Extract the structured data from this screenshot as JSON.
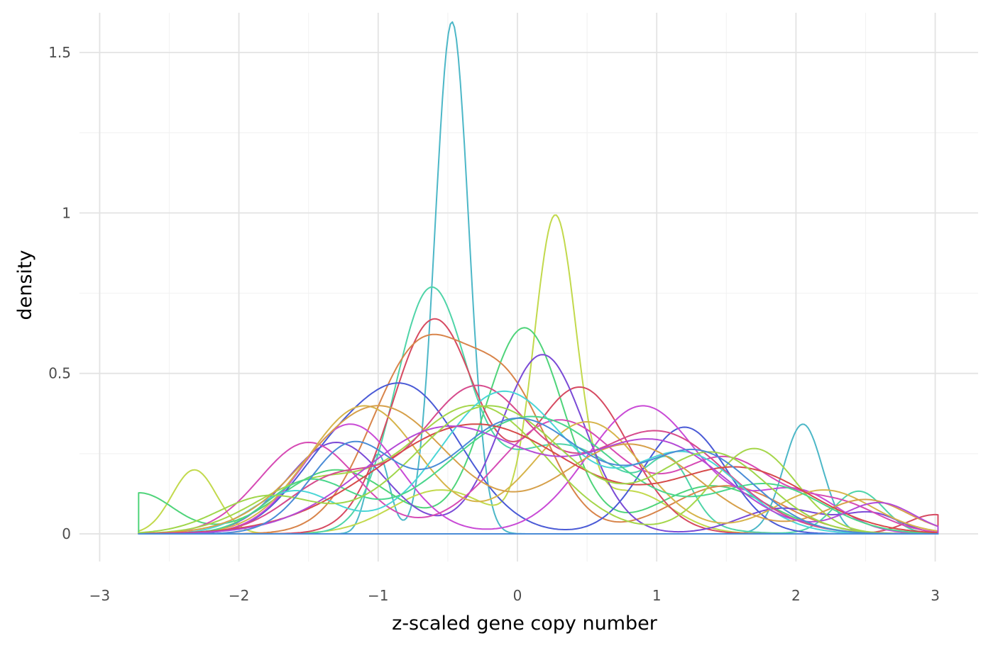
{
  "chart_data": {
    "type": "line",
    "subtype": "density",
    "title": "",
    "xlabel": "z-scaled gene copy number",
    "ylabel": "density",
    "xlim": [
      -3,
      3.1
    ],
    "ylim": [
      -0.07,
      1.63
    ],
    "x_ticks": [
      -3,
      -2,
      -1,
      0,
      1,
      2,
      3
    ],
    "x_tick_labels": [
      "−3",
      "−2",
      "−1",
      "0",
      "1",
      "2",
      "3"
    ],
    "y_ticks": [
      0,
      0.5,
      1,
      1.5
    ],
    "y_tick_labels": [
      "0",
      "0.5",
      "1",
      "1.5"
    ],
    "grid": true,
    "legend": "none",
    "x_range": [
      -2.72,
      3.02
    ],
    "series": [
      {
        "color": "#4cb7c7",
        "components": [
          [
            -0.47,
            0.12,
            0.48
          ],
          [
            -1.0,
            0.08,
            0.05
          ],
          [
            2.05,
            0.14,
            0.12
          ]
        ]
      },
      {
        "color": "#c2d94c",
        "components": [
          [
            0.27,
            0.15,
            0.36
          ],
          [
            -2.32,
            0.16,
            0.08
          ],
          [
            -0.55,
            0.35,
            0.12
          ],
          [
            0.8,
            0.3,
            0.1
          ]
        ]
      },
      {
        "color": "#4fd47a",
        "components": [
          [
            -2.72,
            0.25,
            0.08
          ],
          [
            0.05,
            0.28,
            0.45
          ],
          [
            -1.3,
            0.4,
            0.2
          ],
          [
            1.4,
            0.4,
            0.15
          ]
        ]
      },
      {
        "color": "#4fd4a8",
        "components": [
          [
            -0.63,
            0.25,
            0.45
          ],
          [
            1.1,
            0.15,
            0.06
          ],
          [
            2.45,
            0.18,
            0.06
          ],
          [
            0.3,
            0.5,
            0.35
          ]
        ]
      },
      {
        "color": "#d64a61",
        "components": [
          [
            -0.6,
            0.3,
            0.5
          ],
          [
            0.45,
            0.35,
            0.4
          ],
          [
            3.0,
            0.2,
            0.03
          ]
        ]
      },
      {
        "color": "#d8844a",
        "components": [
          [
            -0.7,
            0.35,
            0.5
          ],
          [
            -0.05,
            0.3,
            0.3
          ],
          [
            1.5,
            0.4,
            0.15
          ]
        ]
      },
      {
        "color": "#7a4ad6",
        "components": [
          [
            0.18,
            0.3,
            0.42
          ],
          [
            -1.3,
            0.35,
            0.25
          ],
          [
            1.9,
            0.3,
            0.06
          ],
          [
            2.55,
            0.2,
            0.03
          ]
        ]
      },
      {
        "color": "#4a5ad6",
        "components": [
          [
            -0.8,
            0.4,
            0.45
          ],
          [
            1.2,
            0.3,
            0.25
          ],
          [
            -1.4,
            0.3,
            0.1
          ]
        ]
      },
      {
        "color": "#c94ad6",
        "components": [
          [
            -1.2,
            0.35,
            0.3
          ],
          [
            0.9,
            0.4,
            0.4
          ],
          [
            2.0,
            0.3,
            0.1
          ]
        ]
      },
      {
        "color": "#d64ab4",
        "components": [
          [
            -1.5,
            0.35,
            0.25
          ],
          [
            0.3,
            0.45,
            0.4
          ],
          [
            1.5,
            0.35,
            0.2
          ],
          [
            2.3,
            0.3,
            0.07
          ]
        ]
      },
      {
        "color": "#d6b44a",
        "components": [
          [
            -1.1,
            0.4,
            0.4
          ],
          [
            0.5,
            0.4,
            0.35
          ],
          [
            2.2,
            0.35,
            0.12
          ]
        ]
      },
      {
        "color": "#a5d64a",
        "components": [
          [
            -0.3,
            0.5,
            0.5
          ],
          [
            1.7,
            0.3,
            0.2
          ],
          [
            -1.5,
            0.4,
            0.15
          ]
        ]
      },
      {
        "color": "#d64a8c",
        "components": [
          [
            -0.3,
            0.4,
            0.45
          ],
          [
            1.0,
            0.5,
            0.4
          ],
          [
            -1.3,
            0.35,
            0.15
          ]
        ]
      },
      {
        "color": "#4ad6d6",
        "components": [
          [
            -0.1,
            0.45,
            0.5
          ],
          [
            1.2,
            0.4,
            0.25
          ],
          [
            -1.6,
            0.3,
            0.1
          ]
        ]
      },
      {
        "color": "#d6a04a",
        "components": [
          [
            -1.0,
            0.5,
            0.5
          ],
          [
            0.8,
            0.5,
            0.35
          ],
          [
            2.5,
            0.3,
            0.08
          ]
        ]
      },
      {
        "color": "#4ad68c",
        "components": [
          [
            0.1,
            0.6,
            0.55
          ],
          [
            -1.5,
            0.3,
            0.12
          ],
          [
            1.8,
            0.4,
            0.15
          ]
        ]
      },
      {
        "color": "#d64a4a",
        "components": [
          [
            -0.3,
            0.7,
            0.6
          ],
          [
            1.6,
            0.5,
            0.25
          ]
        ]
      },
      {
        "color": "#b44ad6",
        "components": [
          [
            -0.5,
            0.6,
            0.5
          ],
          [
            1.0,
            0.5,
            0.35
          ],
          [
            2.6,
            0.25,
            0.06
          ]
        ]
      },
      {
        "color": "#9fd64a",
        "components": [
          [
            -0.2,
            0.55,
            0.55
          ],
          [
            1.4,
            0.4,
            0.25
          ],
          [
            -1.8,
            0.35,
            0.1
          ]
        ]
      },
      {
        "color": "#4a8cd6",
        "components": [
          [
            -1.2,
            0.3,
            0.2
          ],
          [
            0.0,
            0.5,
            0.45
          ],
          [
            1.3,
            0.4,
            0.25
          ]
        ]
      }
    ]
  }
}
